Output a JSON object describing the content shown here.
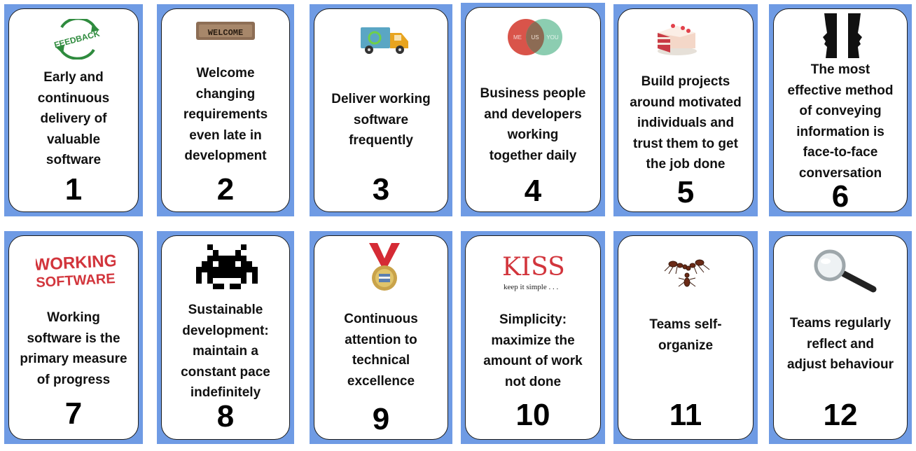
{
  "cards": [
    {
      "text": "Early and\ncontinuous\ndelivery of\nvaluable\nsoftware",
      "number": "1",
      "icon": "feedback-icon",
      "icon_text": "FEEDBACK"
    },
    {
      "text": "Welcome\nchanging\nrequirements\neven late in\ndevelopment",
      "number": "2",
      "icon": "welcome-mat-icon",
      "icon_text": "WELCOME"
    },
    {
      "text": "Deliver working\nsoftware\nfrequently",
      "number": "3",
      "icon": "delivery-truck-icon"
    },
    {
      "text": "Business people\nand developers\nworking\ntogether daily",
      "number": "4",
      "icon": "venn-diagram-icon",
      "icon_labels": [
        "ME",
        "US",
        "YOU"
      ]
    },
    {
      "text": "Build projects\naround motivated\nindividuals and\ntrust them to get\nthe job done",
      "number": "5",
      "icon": "cake-icon"
    },
    {
      "text": "The most\neffective method\nof conveying\ninformation is\nface-to-face\nconversation",
      "number": "6",
      "icon": "faces-icon"
    },
    {
      "text": "Working\nsoftware is the\nprimary measure\nof progress",
      "number": "7",
      "icon": "working-software-stamp-icon",
      "icon_text": [
        "WORKING",
        "SOFTWARE"
      ]
    },
    {
      "text": "Sustainable\ndevelopment:\nmaintain a\nconstant pace\nindefinitely",
      "number": "8",
      "icon": "space-invader-icon"
    },
    {
      "text": "Continuous\nattention to\ntechnical\nexcellence",
      "number": "9",
      "icon": "medal-icon"
    },
    {
      "text": "Simplicity:\nmaximize the\namount of work\nnot done",
      "number": "10",
      "icon": "kiss-icon",
      "icon_text": [
        "KISS",
        "keep it simple . . ."
      ]
    },
    {
      "text": "Teams self-\norganize",
      "number": "11",
      "icon": "ants-icon"
    },
    {
      "text": "Teams regularly\nreflect and\nadjust behaviour",
      "number": "12",
      "icon": "magnifying-glass-icon"
    }
  ],
  "colors": {
    "card_border": "#6f9be4",
    "card_face": "#ffffff",
    "text": "#111111"
  }
}
